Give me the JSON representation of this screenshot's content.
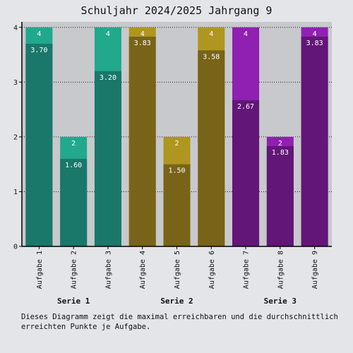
{
  "chart_data": {
    "type": "bar",
    "title": "Schuljahr 2024/2025 Jahrgang 9",
    "categories": [
      "Aufgabe 1",
      "Aufgabe 2",
      "Aufgabe 3",
      "Aufgabe 4",
      "Aufgabe 5",
      "Aufgabe 6",
      "Aufgabe 7",
      "Aufgabe 8",
      "Aufgabe 9"
    ],
    "groups": [
      {
        "label": "Serie 1",
        "indices": [
          0,
          1,
          2
        ]
      },
      {
        "label": "Serie 2",
        "indices": [
          3,
          4,
          5
        ]
      },
      {
        "label": "Serie 3",
        "indices": [
          6,
          7,
          8
        ]
      }
    ],
    "series": [
      {
        "values": [
          4,
          2,
          4,
          4,
          2,
          4,
          4,
          2,
          4
        ]
      },
      {
        "values": [
          3.7,
          1.6,
          3.2,
          3.83,
          1.5,
          3.58,
          2.67,
          1.83,
          3.83
        ]
      }
    ],
    "data_labels_max": [
      "4",
      "2",
      "4",
      "4",
      "2",
      "4",
      "4",
      "2",
      "4"
    ],
    "data_labels_avg": [
      "3.70",
      "1.60",
      "3.20",
      "3.83",
      "1.50",
      "3.58",
      "2.67",
      "1.83",
      "3.83"
    ],
    "ylim": [
      0,
      4.1
    ],
    "yticks": [
      "0",
      "1",
      "2",
      "3",
      "4"
    ],
    "grid": true,
    "colors": {
      "max": [
        "#22a88d",
        "#22a88d",
        "#22a88d",
        "#ae9621",
        "#ae9621",
        "#ae9621",
        "#8f20b1",
        "#8f20b1",
        "#8f20b1"
      ],
      "avg": [
        "#19786a",
        "#19786a",
        "#19786a",
        "#786418",
        "#786418",
        "#786418",
        "#621678",
        "#621678",
        "#621678"
      ],
      "plot_bg": "#c8c9cc"
    }
  },
  "caption": "Dieses Diagramm zeigt die maximal erreichbaren und die durchschnittlich erreichten Punkte je Aufgabe."
}
